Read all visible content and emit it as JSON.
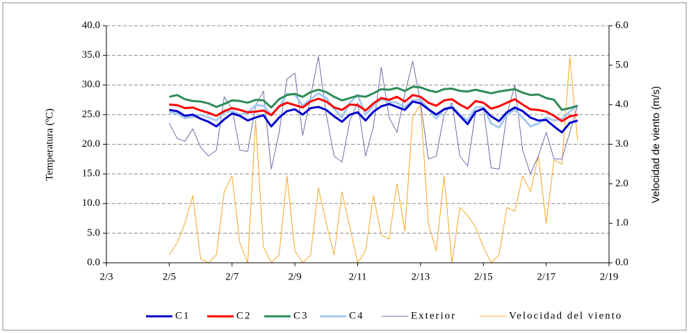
{
  "chart_data": {
    "type": "line",
    "y_label": "Temperatura (ºC)",
    "y2_label": "Velocidad de viento (m/s)",
    "xlim": [
      3,
      19
    ],
    "xticks": [
      {
        "value": 3,
        "label": "2/3"
      },
      {
        "value": 5,
        "label": "2/5"
      },
      {
        "value": 7,
        "label": "2/7"
      },
      {
        "value": 9,
        "label": "2/9"
      },
      {
        "value": 11,
        "label": "2/11"
      },
      {
        "value": 13,
        "label": "2/13"
      },
      {
        "value": 15,
        "label": "2/15"
      },
      {
        "value": 17,
        "label": "2/17"
      },
      {
        "value": 19,
        "label": "2/19"
      }
    ],
    "ylim": [
      0,
      40
    ],
    "yticks": [
      {
        "value": 0,
        "label": "0.0"
      },
      {
        "value": 5,
        "label": "5.0"
      },
      {
        "value": 10,
        "label": "10.0"
      },
      {
        "value": 15,
        "label": "15.0"
      },
      {
        "value": 20,
        "label": "20.0"
      },
      {
        "value": 25,
        "label": "25.0"
      },
      {
        "value": 30,
        "label": "30.0"
      },
      {
        "value": 35,
        "label": "35.0"
      },
      {
        "value": 40,
        "label": "40.0"
      }
    ],
    "y2lim": [
      0,
      6
    ],
    "y2ticks": [
      {
        "value": 0,
        "label": "0.0"
      },
      {
        "value": 1,
        "label": "1.0"
      },
      {
        "value": 2,
        "label": "2.0"
      },
      {
        "value": 3,
        "label": "3.0"
      },
      {
        "value": 4,
        "label": "4.0"
      },
      {
        "value": 5,
        "label": "5.0"
      },
      {
        "value": 6,
        "label": "6.0"
      }
    ],
    "grid": true,
    "legend": "bottom",
    "x": [
      5,
      5.25,
      5.5,
      5.75,
      6,
      6.25,
      6.5,
      6.75,
      7,
      7.25,
      7.5,
      7.75,
      8,
      8.25,
      8.5,
      8.75,
      9,
      9.25,
      9.5,
      9.75,
      10,
      10.25,
      10.5,
      10.75,
      11,
      11.25,
      11.5,
      11.75,
      12,
      12.25,
      12.5,
      12.75,
      13,
      13.25,
      13.5,
      13.75,
      14,
      14.25,
      14.5,
      14.75,
      15,
      15.25,
      15.5,
      15.75,
      16,
      16.25,
      16.5,
      16.75,
      17,
      17.25,
      17.5,
      17.75,
      18
    ],
    "series": [
      {
        "name": "C1",
        "color": "#0000cc",
        "width": 3,
        "values": [
          25.8,
          25.6,
          24.8,
          25.0,
          24.3,
          23.8,
          23.0,
          24.2,
          25.2,
          24.8,
          24.0,
          24.5,
          24.9,
          23.0,
          24.5,
          25.6,
          25.9,
          25.0,
          26.1,
          26.3,
          25.8,
          24.7,
          23.8,
          25.0,
          25.4,
          24.0,
          25.5,
          26.4,
          26.8,
          26.3,
          25.8,
          27.2,
          26.9,
          25.9,
          25.0,
          25.9,
          26.2,
          24.8,
          23.4,
          25.5,
          26.0,
          24.7,
          23.9,
          25.4,
          26.2,
          25.6,
          24.5,
          24.0,
          24.1,
          23.0,
          22.0,
          23.6,
          24.0
        ]
      },
      {
        "name": "C2",
        "color": "#ff0000",
        "width": 3,
        "values": [
          26.7,
          26.6,
          26.1,
          26.2,
          25.7,
          25.3,
          24.8,
          25.6,
          26.1,
          25.8,
          25.4,
          25.5,
          25.7,
          24.9,
          26.4,
          27.0,
          26.6,
          26.2,
          27.2,
          27.7,
          27.2,
          26.2,
          25.8,
          26.7,
          26.6,
          25.7,
          26.9,
          27.8,
          27.5,
          28.0,
          27.2,
          28.3,
          28.0,
          27.0,
          26.5,
          27.4,
          27.6,
          26.7,
          26.0,
          27.3,
          27.0,
          26.0,
          26.4,
          27.0,
          27.6,
          26.7,
          25.9,
          25.8,
          25.5,
          24.8,
          23.9,
          24.7,
          25.0
        ]
      },
      {
        "name": "C3",
        "color": "#2e8b57",
        "width": 3,
        "values": [
          28.0,
          28.3,
          27.6,
          27.3,
          27.2,
          26.9,
          26.3,
          26.8,
          27.4,
          27.3,
          27.0,
          27.5,
          27.4,
          26.2,
          27.6,
          28.3,
          28.5,
          28.0,
          28.8,
          29.2,
          28.8,
          28.0,
          27.4,
          27.8,
          28.2,
          28.0,
          28.6,
          29.3,
          29.2,
          29.5,
          29.0,
          29.7,
          29.6,
          29.1,
          28.8,
          29.3,
          29.4,
          29.0,
          28.9,
          29.2,
          28.9,
          28.6,
          28.9,
          29.1,
          29.3,
          28.7,
          28.3,
          28.4,
          27.8,
          27.5,
          25.8,
          26.1,
          26.5
        ]
      },
      {
        "name": "C4",
        "color": "#a6caf0",
        "width": 3,
        "values": [
          25.4,
          25.2,
          24.4,
          24.6,
          25.0,
          24.5,
          24.0,
          25.4,
          25.6,
          25.0,
          25.3,
          26.6,
          26.5,
          25.0,
          26.2,
          28.5,
          28.4,
          26.5,
          27.6,
          28.6,
          27.8,
          26.0,
          24.5,
          27.0,
          28.3,
          25.0,
          26.5,
          27.6,
          27.2,
          27.0,
          26.3,
          27.4,
          27.5,
          26.0,
          24.3,
          26.0,
          26.5,
          25.0,
          24.0,
          26.2,
          26.3,
          23.5,
          22.8,
          25.0,
          25.8,
          24.5,
          23.0,
          23.5,
          24.5,
          24.0,
          24.3,
          25.5,
          26.5
        ]
      },
      {
        "name": "Exterior",
        "color": "#6b6ba8",
        "width": 1,
        "values": [
          23.6,
          21.0,
          20.5,
          22.6,
          19.5,
          18.0,
          19.0,
          28.0,
          26.0,
          19.0,
          18.8,
          26.5,
          29.0,
          15.8,
          22.0,
          31.0,
          32.0,
          21.5,
          28.0,
          34.8,
          25.0,
          18.0,
          17.0,
          24.0,
          27.0,
          18.0,
          23.0,
          33.0,
          24.5,
          22.0,
          28.5,
          34.0,
          27.0,
          17.5,
          18.0,
          25.0,
          27.0,
          18.0,
          16.3,
          25.5,
          26.0,
          16.0,
          15.8,
          25.0,
          30.0,
          19.0,
          15.0,
          18.0,
          22.0,
          17.5,
          17.5,
          22.0,
          26.5
        ]
      },
      {
        "name": "Velocidad del viento",
        "color": "#f5a623",
        "width": 1,
        "axis": "y2",
        "values": [
          0.2,
          0.5,
          1.0,
          1.7,
          0.1,
          0.0,
          0.2,
          1.8,
          2.2,
          0.5,
          0.0,
          3.6,
          0.4,
          0.0,
          0.2,
          2.2,
          0.3,
          0.0,
          0.2,
          1.9,
          1.0,
          0.2,
          1.8,
          0.9,
          0.0,
          0.3,
          1.7,
          0.7,
          0.6,
          2.0,
          0.8,
          3.7,
          4.0,
          1.0,
          0.3,
          2.2,
          0.0,
          1.4,
          1.2,
          0.9,
          0.4,
          0.0,
          0.2,
          1.4,
          1.3,
          2.2,
          1.8,
          2.7,
          1.0,
          2.6,
          2.5,
          5.2,
          3.1
        ]
      }
    ]
  }
}
